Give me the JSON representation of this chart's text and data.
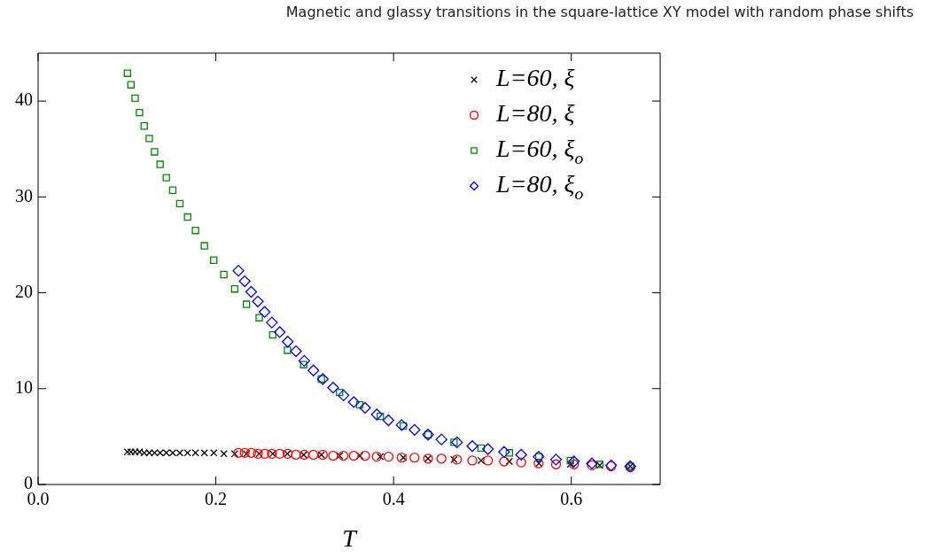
{
  "chart_data": {
    "type": "scatter",
    "title": "Magnetic and glassy transitions in the square-lattice XY model with random phase shifts",
    "xlabel": "T",
    "xlim": [
      0,
      0.7
    ],
    "ylim": [
      0,
      45
    ],
    "xticks": [
      {
        "value": 0,
        "label": "0.0"
      },
      0.2,
      0.4,
      0.6
    ],
    "yticks": [
      0,
      10,
      20,
      30,
      40
    ],
    "grid": false,
    "legend": "top right",
    "series": [
      {
        "name": "L=60, ξ",
        "color": "#000000",
        "marker": "cross",
        "x": [
          0.1005,
          0.1045,
          0.1092,
          0.1141,
          0.1194,
          0.1251,
          0.131,
          0.1373,
          0.1443,
          0.1515,
          0.1595,
          0.1682,
          0.1771,
          0.1871,
          0.1977,
          0.209,
          0.2212,
          0.2345,
          0.2488,
          0.264,
          0.2806,
          0.2988,
          0.3187,
          0.3393,
          0.3619,
          0.3851,
          0.411,
          0.4388,
          0.468,
          0.4985,
          0.5303,
          0.5635,
          0.599,
          0.632,
          0.6664
        ],
        "values": [
          3.4,
          3.4,
          3.4,
          3.4,
          3.3,
          3.3,
          3.3,
          3.3,
          3.3,
          3.3,
          3.3,
          3.3,
          3.3,
          3.3,
          3.3,
          3.2,
          3.2,
          3.2,
          3.2,
          3.2,
          3.2,
          3.1,
          3.1,
          3.0,
          3.0,
          2.9,
          2.8,
          2.7,
          2.6,
          2.5,
          2.4,
          2.2,
          2.1,
          2.0,
          1.9
        ]
      },
      {
        "name": "L=80, ξ",
        "color": "#ff0000",
        "marker": "circle",
        "x": [
          0.2254,
          0.2325,
          0.2398,
          0.2473,
          0.2549,
          0.263,
          0.2719,
          0.2809,
          0.2902,
          0.2995,
          0.3098,
          0.3204,
          0.332,
          0.3436,
          0.3552,
          0.3679,
          0.3811,
          0.3943,
          0.4091,
          0.4236,
          0.4388,
          0.4539,
          0.4713,
          0.4886,
          0.5062,
          0.5244,
          0.5436,
          0.5632,
          0.5828,
          0.603,
          0.6232,
          0.6448,
          0.6664
        ],
        "values": [
          3.3,
          3.3,
          3.3,
          3.2,
          3.2,
          3.2,
          3.2,
          3.2,
          3.1,
          3.1,
          3.1,
          3.1,
          3.0,
          3.0,
          3.0,
          3.0,
          2.9,
          2.9,
          2.8,
          2.8,
          2.7,
          2.7,
          2.6,
          2.5,
          2.5,
          2.4,
          2.3,
          2.2,
          2.1,
          2.1,
          2.0,
          1.9,
          1.8
        ]
      },
      {
        "name": "L=60, ξ$_{o}$",
        "color": "#008800",
        "marker": "square",
        "x": [
          0.1005,
          0.1045,
          0.1092,
          0.1141,
          0.1194,
          0.1251,
          0.131,
          0.1373,
          0.1443,
          0.1515,
          0.1595,
          0.1682,
          0.1771,
          0.1871,
          0.1977,
          0.209,
          0.2212,
          0.2345,
          0.2488,
          0.264,
          0.2806,
          0.2988,
          0.3187,
          0.3393,
          0.3619,
          0.3851,
          0.411,
          0.4388,
          0.468,
          0.4985,
          0.5303,
          0.5635,
          0.599,
          0.632,
          0.6664
        ],
        "values": [
          42.9,
          41.7,
          40.3,
          38.8,
          37.4,
          36.1,
          34.7,
          33.4,
          32.0,
          30.7,
          29.3,
          27.9,
          26.5,
          24.9,
          23.4,
          21.9,
          20.4,
          18.8,
          17.4,
          15.6,
          14.0,
          12.5,
          11.0,
          9.6,
          8.3,
          7.1,
          6.1,
          5.2,
          4.4,
          3.8,
          3.3,
          2.9,
          2.5,
          2.1,
          1.9
        ]
      },
      {
        "name": "L=80, ξ$_{o}$",
        "color": "#0000ff",
        "marker": "diamond",
        "x": [
          0.2254,
          0.2325,
          0.2398,
          0.2473,
          0.2549,
          0.263,
          0.2719,
          0.2809,
          0.2902,
          0.2995,
          0.3098,
          0.3204,
          0.332,
          0.3436,
          0.3552,
          0.3679,
          0.3811,
          0.3943,
          0.4091,
          0.4236,
          0.4388,
          0.4539,
          0.4713,
          0.4886,
          0.5062,
          0.5244,
          0.5436,
          0.5632,
          0.5828,
          0.603,
          0.6232,
          0.6448,
          0.6664
        ],
        "values": [
          22.3,
          21.2,
          20.1,
          19.1,
          18.0,
          16.9,
          15.9,
          14.9,
          13.9,
          12.9,
          11.9,
          11.0,
          10.1,
          9.3,
          8.6,
          8.0,
          7.3,
          6.7,
          6.2,
          5.7,
          5.2,
          4.7,
          4.4,
          4.0,
          3.7,
          3.4,
          3.1,
          2.9,
          2.6,
          2.4,
          2.2,
          2.0,
          1.9
        ]
      }
    ]
  }
}
